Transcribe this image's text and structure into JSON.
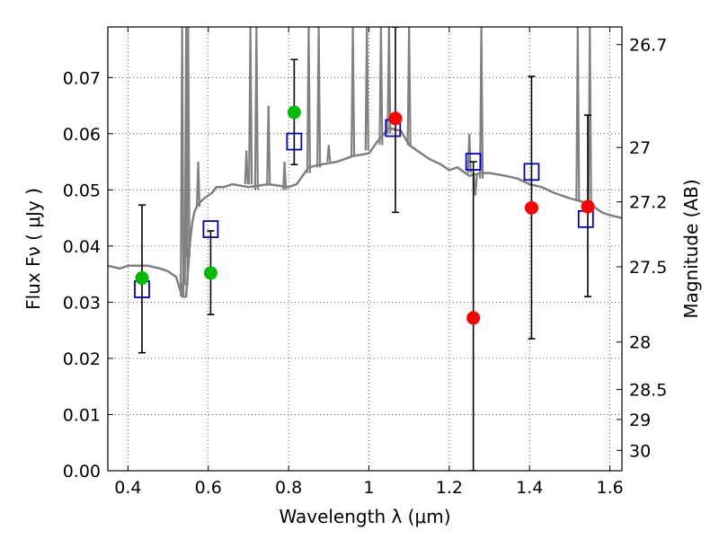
{
  "chart_data": {
    "type": "scatter",
    "xlabel": "Wavelength  λ (μm)",
    "ylabel": "Flux  Fν  ( μJy )",
    "y2label": "Magnitude (AB)",
    "xlim": [
      0.35,
      1.63
    ],
    "ylim": [
      0.0,
      0.079
    ],
    "grid": true,
    "x_ticks": [
      0.4,
      0.6,
      0.8,
      1.0,
      1.2,
      1.4,
      1.6
    ],
    "x_tick_labels": [
      "0.4",
      "0.6",
      "0.8",
      "1",
      "1.2",
      "1.4",
      "1.6"
    ],
    "y_ticks": [
      0.0,
      0.01,
      0.02,
      0.03,
      0.04,
      0.05,
      0.06,
      0.07
    ],
    "y_tick_labels": [
      "0.00",
      "0.01",
      "0.02",
      "0.03",
      "0.04",
      "0.05",
      "0.06",
      "0.07"
    ],
    "mag_ticks": [
      26.7,
      27,
      27.2,
      27.5,
      28,
      28.5,
      29,
      30
    ],
    "mag_tick_labels": [
      "26.7",
      "27",
      "27.2",
      "27.5",
      "28",
      "28.5",
      "29",
      "30"
    ],
    "series": [
      {
        "name": "model_spectrum",
        "kind": "line",
        "color": "#808080",
        "x": [
          0.35,
          0.38,
          0.4,
          0.42,
          0.45,
          0.48,
          0.5,
          0.52,
          0.535,
          0.545,
          0.555,
          0.56,
          0.565,
          0.575,
          0.59,
          0.6,
          0.61,
          0.62,
          0.64,
          0.66,
          0.7,
          0.75,
          0.8,
          0.82,
          0.85,
          0.88,
          0.92,
          0.96,
          1.0,
          1.02,
          1.05,
          1.08,
          1.1,
          1.12,
          1.15,
          1.18,
          1.2,
          1.22,
          1.25,
          1.28,
          1.3,
          1.34,
          1.37,
          1.4,
          1.43,
          1.46,
          1.5,
          1.55,
          1.58,
          1.6,
          1.63
        ],
        "y": [
          0.0365,
          0.036,
          0.0365,
          0.0365,
          0.0365,
          0.036,
          0.0355,
          0.0345,
          0.031,
          0.031,
          0.041,
          0.044,
          0.046,
          0.0475,
          0.0485,
          0.049,
          0.0495,
          0.0505,
          0.0505,
          0.051,
          0.0505,
          0.051,
          0.0505,
          0.051,
          0.054,
          0.0545,
          0.055,
          0.056,
          0.0565,
          0.0585,
          0.061,
          0.0605,
          0.058,
          0.057,
          0.0555,
          0.0545,
          0.0535,
          0.054,
          0.0525,
          0.053,
          0.053,
          0.0525,
          0.052,
          0.051,
          0.0505,
          0.0495,
          0.0485,
          0.0475,
          0.046,
          0.0455,
          0.045
        ]
      },
      {
        "name": "emission_lines",
        "kind": "spikes",
        "color": "#808080",
        "lines": [
          {
            "x": 0.535,
            "base": 0.031,
            "peak": 0.079
          },
          {
            "x": 0.545,
            "base": 0.033,
            "peak": 0.079
          },
          {
            "x": 0.55,
            "base": 0.038,
            "peak": 0.079
          },
          {
            "x": 0.575,
            "base": 0.047,
            "peak": 0.055
          },
          {
            "x": 0.695,
            "base": 0.051,
            "peak": 0.057
          },
          {
            "x": 0.705,
            "base": 0.051,
            "peak": 0.079
          },
          {
            "x": 0.72,
            "base": 0.05,
            "peak": 0.079
          },
          {
            "x": 0.75,
            "base": 0.051,
            "peak": 0.065
          },
          {
            "x": 0.79,
            "base": 0.05,
            "peak": 0.055
          },
          {
            "x": 0.85,
            "base": 0.053,
            "peak": 0.079
          },
          {
            "x": 0.875,
            "base": 0.054,
            "peak": 0.079
          },
          {
            "x": 0.9,
            "base": 0.055,
            "peak": 0.058
          },
          {
            "x": 0.96,
            "base": 0.056,
            "peak": 0.079
          },
          {
            "x": 0.995,
            "base": 0.057,
            "peak": 0.079
          },
          {
            "x": 1.03,
            "base": 0.058,
            "peak": 0.079
          },
          {
            "x": 1.05,
            "base": 0.06,
            "peak": 0.079
          },
          {
            "x": 1.1,
            "base": 0.058,
            "peak": 0.079
          },
          {
            "x": 1.25,
            "base": 0.053,
            "peak": 0.06
          },
          {
            "x": 1.28,
            "base": 0.052,
            "peak": 0.079
          },
          {
            "x": 1.52,
            "base": 0.048,
            "peak": 0.079
          },
          {
            "x": 1.55,
            "base": 0.047,
            "peak": 0.079
          }
        ],
        "absorption": [
          {
            "x": 0.535,
            "base": 0.035,
            "trough": 0.031
          },
          {
            "x": 1.265,
            "base": 0.053,
            "trough": 0.049
          }
        ]
      },
      {
        "name": "model_photometry",
        "kind": "open_square",
        "color": "#0000cc",
        "x": [
          0.435,
          0.606,
          0.814,
          1.06,
          1.26,
          1.405,
          1.54
        ],
        "y": [
          0.0323,
          0.043,
          0.0586,
          0.061,
          0.055,
          0.0532,
          0.0448
        ]
      },
      {
        "name": "observed_green",
        "kind": "filled_circle",
        "color": "#00bb00",
        "x": [
          0.435,
          0.606,
          0.814
        ],
        "y": [
          0.0343,
          0.0352,
          0.0638
        ],
        "err_low": [
          0.021,
          0.0278,
          0.0545
        ],
        "err_high": [
          0.0473,
          0.0427,
          0.0732
        ]
      },
      {
        "name": "observed_red",
        "kind": "filled_circle",
        "color": "#ff0000",
        "x": [
          1.066,
          1.26,
          1.405,
          1.545
        ],
        "y": [
          0.0627,
          0.0272,
          0.0468,
          0.047
        ],
        "err_low": [
          0.046,
          0.0,
          0.0235,
          0.031
        ],
        "err_high": [
          0.079,
          0.055,
          0.0702,
          0.0633
        ]
      }
    ]
  }
}
